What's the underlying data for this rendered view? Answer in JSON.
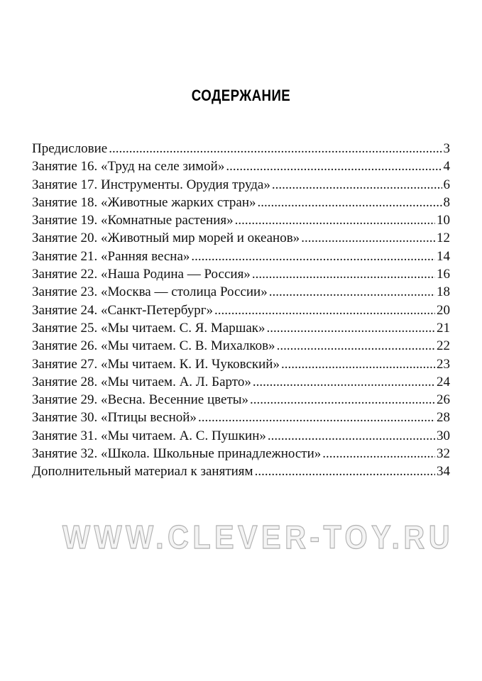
{
  "title": "СОДЕРЖАНИЕ",
  "entries": [
    {
      "label": "Предисловие",
      "page": "3"
    },
    {
      "label": "Занятие 16. «Труд на селе зимой»",
      "page": "4"
    },
    {
      "label": "Занятие 17. Инструменты. Орудия труда»",
      "page": "6"
    },
    {
      "label": "Занятие 18. «Животные жарких стран»",
      "page": "8"
    },
    {
      "label": "Занятие 19. «Комнатные растения»",
      "page": "10"
    },
    {
      "label": "Занятие 20. «Животный мир морей и океанов»",
      "page": "12"
    },
    {
      "label": "Занятие 21. «Ранняя весна»",
      "page": "14"
    },
    {
      "label": "Занятие 22. «Наша Родина — Россия»",
      "page": "16"
    },
    {
      "label": "Занятие 23. «Москва — столица России»",
      "page": "18"
    },
    {
      "label": "Занятие 24. «Санкт-Петербург»",
      "page": "20"
    },
    {
      "label": "Занятие 25. «Мы читаем. С. Я. Маршак»",
      "page": "21"
    },
    {
      "label": "Занятие 26. «Мы читаем. С. В. Михалков»",
      "page": "22"
    },
    {
      "label": "Занятие 27. «Мы читаем. К. И. Чуковский»",
      "page": "23"
    },
    {
      "label": "Занятие 28. «Мы читаем. А. Л. Барто»",
      "page": "24"
    },
    {
      "label": "Занятие 29. «Весна. Весенние цветы»",
      "page": "26"
    },
    {
      "label": "Занятие 30. «Птицы весной»",
      "page": "28"
    },
    {
      "label": "Занятие 31. «Мы читаем. А. С. Пушкин»",
      "page": "30"
    },
    {
      "label": "Занятие 32. «Школа. Школьные принадлежности»",
      "page": "32"
    },
    {
      "label": "Дополнительный материал к занятиям",
      "page": "34"
    }
  ],
  "watermark": "WWW.CLEVER-TOY.RU"
}
